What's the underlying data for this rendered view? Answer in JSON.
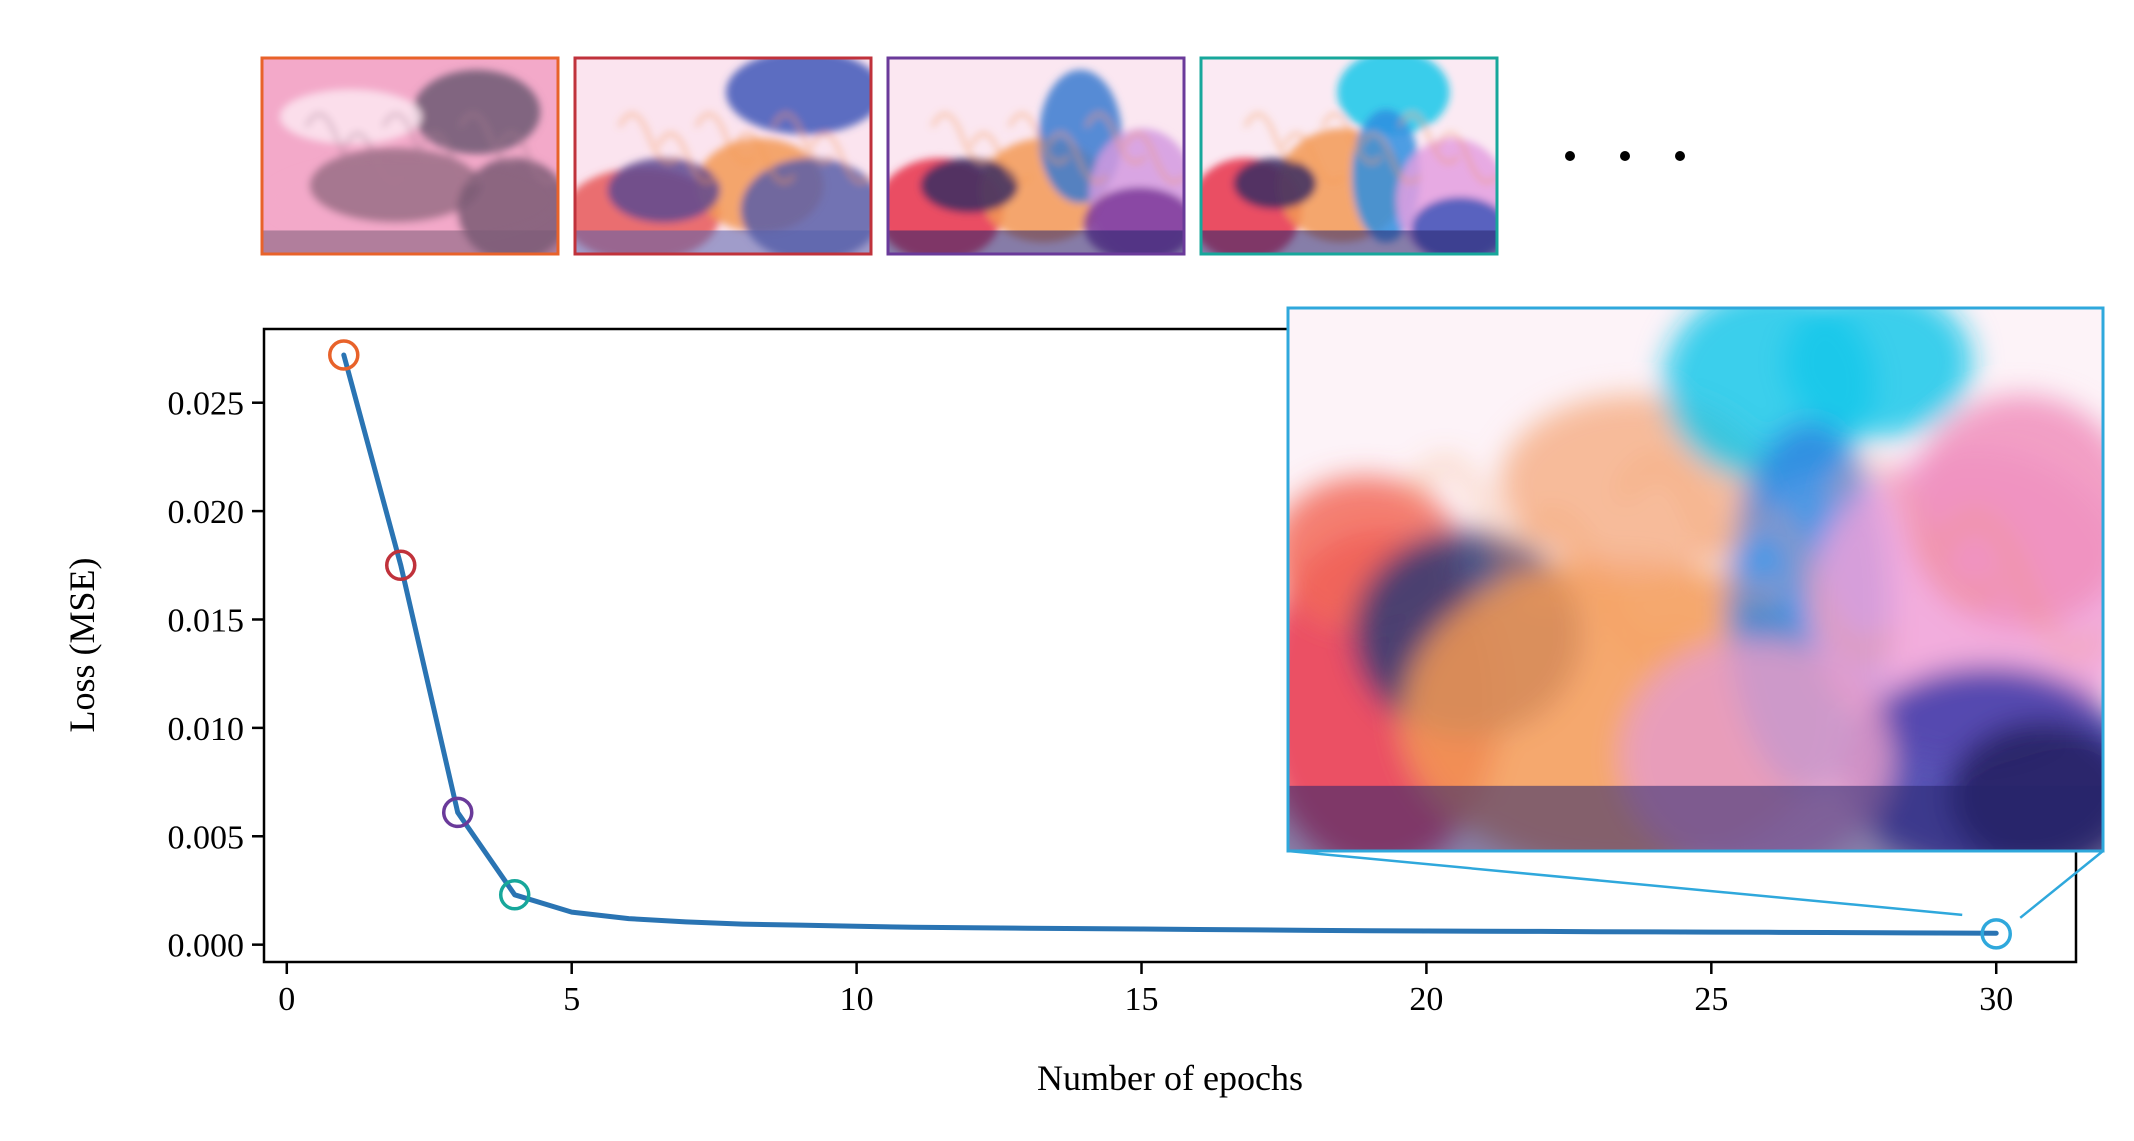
{
  "colors": {
    "line": "#2a74b3",
    "thumb_borders": [
      "#e8622a",
      "#c0323b",
      "#6a3a9a",
      "#17a79b"
    ],
    "inset_border": "#2fa8dc",
    "ink_palette": {
      "white": "#fbf5f9",
      "pink": "#f3a9c9",
      "red": "#e7324a",
      "orange": "#f39a55",
      "purple": "#7c3a99",
      "blue": "#3f57b9",
      "cyan": "#18c8ea",
      "navy": "#26246c"
    }
  },
  "chart_data": {
    "type": "line",
    "xlabel": "Number of epochs",
    "ylabel": "Loss (MSE)",
    "xlim": [
      -0.4,
      31.4
    ],
    "ylim": [
      -0.0008,
      0.0284
    ],
    "x_ticks": [
      0,
      5,
      10,
      15,
      20,
      25,
      30
    ],
    "y_ticks": [
      0.0,
      0.005,
      0.01,
      0.015,
      0.02,
      0.025
    ],
    "x_tick_labels": [
      "0",
      "5",
      "10",
      "15",
      "20",
      "25",
      "30"
    ],
    "y_tick_labels": [
      "0.000",
      "0.005",
      "0.010",
      "0.015",
      "0.020",
      "0.025"
    ],
    "grid": false,
    "series": [
      {
        "x": [
          1,
          2,
          3,
          4,
          5,
          6,
          7,
          8,
          9,
          10,
          11,
          12,
          13,
          14,
          15,
          16,
          17,
          18,
          19,
          20,
          21,
          22,
          23,
          24,
          25,
          26,
          27,
          28,
          29,
          30
        ],
        "values": [
          0.0272,
          0.0175,
          0.0061,
          0.0023,
          0.0015,
          0.0012,
          0.00105,
          0.00095,
          0.0009,
          0.00085,
          0.0008,
          0.00078,
          0.00076,
          0.00074,
          0.00072,
          0.0007,
          0.00068,
          0.00066,
          0.00064,
          0.00063,
          0.00062,
          0.00061,
          0.0006,
          0.00059,
          0.00058,
          0.00057,
          0.00056,
          0.00055,
          0.00054,
          0.00053
        ]
      }
    ],
    "highlighted_points": [
      {
        "x": 1,
        "y": 0.0272
      },
      {
        "x": 2,
        "y": 0.0175
      },
      {
        "x": 3,
        "y": 0.0061
      },
      {
        "x": 4,
        "y": 0.0023
      },
      {
        "x": 30,
        "y": 0.0005
      }
    ]
  },
  "thumbnails": [
    {
      "name": "epoch-1-thumbnail",
      "stage": 0
    },
    {
      "name": "epoch-2-thumbnail",
      "stage": 1
    },
    {
      "name": "epoch-3-thumbnail",
      "stage": 2
    },
    {
      "name": "epoch-4-thumbnail",
      "stage": 3
    }
  ],
  "inset": {
    "name": "epoch-30-inset",
    "stage": 4
  }
}
